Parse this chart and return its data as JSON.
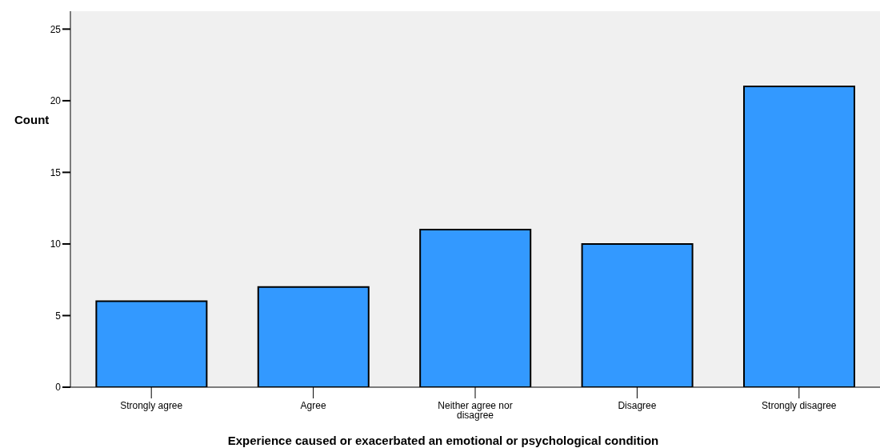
{
  "chart_data": {
    "type": "bar",
    "xlabel": "Experience caused or exacerbated an emotional or psychological condition",
    "ylabel": "Count",
    "categories": [
      "Strongly agree",
      "Agree",
      "Neither agree nor disagree",
      "Disagree",
      "Strongly disagree"
    ],
    "values": [
      6,
      7,
      11,
      10,
      21
    ],
    "color": "#3399ff",
    "ylim": [
      0,
      26.25
    ],
    "yticks": [
      0,
      5,
      10,
      15,
      20,
      25
    ],
    "grid": false
  }
}
